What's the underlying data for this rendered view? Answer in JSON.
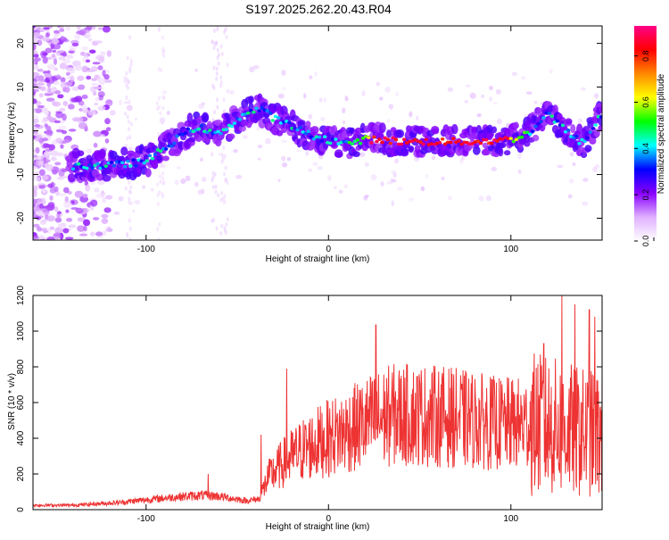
{
  "page_title": "S197.2025.262.20.43.R04",
  "chart_data": [
    {
      "type": "heatmap",
      "name": "spectrogram",
      "xlabel": "Height of straight line (km)",
      "ylabel": "Frequency (Hz)",
      "xlim": [
        -162,
        150
      ],
      "ylim": [
        -25,
        24
      ],
      "xticks": [
        -100,
        0,
        100
      ],
      "yticks": [
        -20,
        -10,
        0,
        10,
        20
      ],
      "colorbar": {
        "label": "Normalized spectral amplitude",
        "range": [
          0,
          0.93
        ],
        "ticks": [
          0.0,
          0.2,
          0.4,
          0.6,
          0.8
        ],
        "colors": [
          "#ffffff",
          "#e0b0ff",
          "#8800ff",
          "#0000ff",
          "#00ffff",
          "#00ff00",
          "#ffff00",
          "#ff8800",
          "#ff0000",
          "#ff0088"
        ]
      },
      "ridge": [
        {
          "x": -142,
          "y": -8
        },
        {
          "x": -120,
          "y": -8
        },
        {
          "x": -100,
          "y": -7
        },
        {
          "x": -90,
          "y": -4
        },
        {
          "x": -80,
          "y": -1
        },
        {
          "x": -72,
          "y": 1
        },
        {
          "x": -62,
          "y": -1
        },
        {
          "x": -52,
          "y": 2
        },
        {
          "x": -45,
          "y": 4
        },
        {
          "x": -38,
          "y": 5
        },
        {
          "x": -30,
          "y": 3
        },
        {
          "x": -20,
          "y": 1
        },
        {
          "x": -10,
          "y": -1
        },
        {
          "x": 0,
          "y": -2
        },
        {
          "x": 10,
          "y": -3
        },
        {
          "x": 20,
          "y": -2
        },
        {
          "x": 30,
          "y": -2
        },
        {
          "x": 40,
          "y": -2.5
        },
        {
          "x": 60,
          "y": -2.5
        },
        {
          "x": 80,
          "y": -2.5
        },
        {
          "x": 100,
          "y": -2
        },
        {
          "x": 110,
          "y": -0.5
        },
        {
          "x": 120,
          "y": 4
        },
        {
          "x": 130,
          "y": 0
        },
        {
          "x": 140,
          "y": -3
        },
        {
          "x": 148,
          "y": 3
        }
      ]
    },
    {
      "type": "line",
      "name": "snr",
      "xlabel": "Height of straight line (km)",
      "ylabel": "SNR (10 * v/v)",
      "xlim": [
        -162,
        150
      ],
      "ylim": [
        0,
        1200
      ],
      "xticks": [
        -100,
        0,
        100
      ],
      "yticks": [
        0,
        200,
        400,
        600,
        800,
        1000,
        1200
      ],
      "series": [
        {
          "name": "SNR",
          "color": "#ee3333",
          "envelope": [
            {
              "x": -162,
              "y": 25
            },
            {
              "x": -140,
              "y": 25
            },
            {
              "x": -115,
              "y": 40
            },
            {
              "x": -100,
              "y": 55
            },
            {
              "x": -85,
              "y": 70
            },
            {
              "x": -70,
              "y": 80
            },
            {
              "x": -60,
              "y": 75
            },
            {
              "x": -45,
              "y": 50
            },
            {
              "x": -38,
              "y": 60
            },
            {
              "x": -33,
              "y": 180
            },
            {
              "x": -25,
              "y": 260
            },
            {
              "x": -15,
              "y": 330
            },
            {
              "x": -5,
              "y": 380
            },
            {
              "x": 5,
              "y": 420
            },
            {
              "x": 15,
              "y": 460
            },
            {
              "x": 25,
              "y": 500
            },
            {
              "x": 35,
              "y": 530
            },
            {
              "x": 50,
              "y": 530
            },
            {
              "x": 65,
              "y": 520
            },
            {
              "x": 80,
              "y": 500
            },
            {
              "x": 95,
              "y": 480
            },
            {
              "x": 110,
              "y": 480
            },
            {
              "x": 120,
              "y": 470
            },
            {
              "x": 130,
              "y": 450
            },
            {
              "x": 140,
              "y": 430
            },
            {
              "x": 150,
              "y": 420
            }
          ],
          "peaks": [
            {
              "x": -66,
              "y": 200
            },
            {
              "x": -37,
              "y": 420
            },
            {
              "x": -23,
              "y": 790
            },
            {
              "x": 26,
              "y": 1035
            },
            {
              "x": 42,
              "y": 740
            },
            {
              "x": 118,
              "y": 930
            },
            {
              "x": 128,
              "y": 1200
            },
            {
              "x": 135,
              "y": 1150
            },
            {
              "x": 143,
              "y": 1120
            },
            {
              "x": 146,
              "y": 1080
            }
          ]
        }
      ]
    }
  ]
}
